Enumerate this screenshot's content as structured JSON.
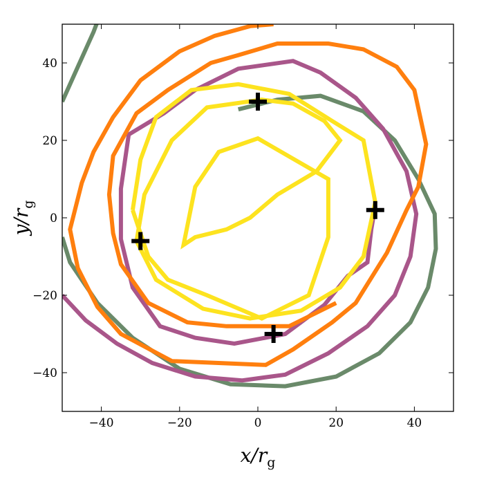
{
  "chart_data": {
    "type": "line",
    "title": "",
    "xlabel": {
      "main": "x/r",
      "sub": "g"
    },
    "ylabel": {
      "main": "y/r",
      "sub": "g"
    },
    "xlim": [
      -50,
      50
    ],
    "ylim": [
      -50,
      50
    ],
    "xticks": [
      -40,
      -20,
      0,
      20,
      40
    ],
    "yticks": [
      -40,
      -20,
      0,
      20,
      40
    ],
    "xtick_labels": [
      "−40",
      "−20",
      "0",
      "20",
      "40"
    ],
    "ytick_labels": [
      "−40",
      "−20",
      "0",
      "20",
      "40"
    ],
    "grid": false,
    "legend": "none",
    "series": [
      {
        "color": "#6a8a6a",
        "points": [
          [
            -50,
            -5
          ],
          [
            -48,
            -11.5
          ],
          [
            -41,
            -22
          ],
          [
            -32,
            -31
          ],
          [
            -20,
            -39
          ],
          [
            -7,
            -43
          ],
          [
            7,
            -43.5
          ],
          [
            20,
            -41
          ],
          [
            31,
            -35
          ],
          [
            39,
            -27
          ],
          [
            43.5,
            -18
          ],
          [
            45.5,
            -8
          ],
          [
            45.2,
            1
          ],
          [
            41,
            10
          ],
          [
            35,
            20
          ],
          [
            27,
            27.5
          ],
          [
            16,
            31.5
          ],
          [
            5,
            30.5
          ],
          [
            -5,
            28
          ]
        ]
      },
      {
        "color": "#6a8a6a",
        "points": [
          [
            -50,
            30
          ],
          [
            -46,
            39
          ],
          [
            -42,
            48
          ],
          [
            -40.5,
            52
          ]
        ]
      },
      {
        "color": "#a9568a",
        "points": [
          [
            -50,
            -20
          ],
          [
            -44,
            -26.5
          ],
          [
            -36,
            -32.5
          ],
          [
            -27,
            -37.5
          ],
          [
            -16,
            -41
          ],
          [
            -4,
            -42
          ],
          [
            7,
            -40.5
          ],
          [
            18,
            -35
          ],
          [
            28,
            -28
          ],
          [
            35,
            -20
          ],
          [
            39,
            -10
          ],
          [
            40.5,
            1
          ],
          [
            38,
            12
          ],
          [
            32,
            23
          ],
          [
            25,
            31
          ],
          [
            16,
            37.5
          ],
          [
            9,
            40.5
          ],
          [
            -5,
            38.5
          ],
          [
            -16,
            33
          ],
          [
            -24,
            27
          ],
          [
            -33,
            21.5
          ],
          [
            -35,
            7.5
          ],
          [
            -35,
            -5.5
          ],
          [
            -32,
            -18
          ],
          [
            -25,
            -28
          ],
          [
            -16,
            -31
          ],
          [
            -6,
            -32.5
          ],
          [
            7,
            -30
          ],
          [
            17,
            -22.5
          ],
          [
            23,
            -15
          ],
          [
            28,
            -11.5
          ],
          [
            29,
            -3
          ],
          [
            30,
            3
          ]
        ]
      },
      {
        "color": "#ff7f0e",
        "points": [
          [
            4,
            50
          ],
          [
            -2,
            49.5
          ],
          [
            -11,
            47
          ],
          [
            -20,
            43
          ],
          [
            -30,
            35.5
          ],
          [
            -37,
            26
          ],
          [
            -42,
            17
          ],
          [
            -45,
            9
          ],
          [
            -48,
            -3
          ],
          [
            -46,
            -13
          ],
          [
            -41,
            -23
          ],
          [
            -35,
            -30
          ],
          [
            -22,
            -37
          ],
          [
            -10,
            -37.5
          ],
          [
            2,
            -38
          ],
          [
            9,
            -34
          ],
          [
            19,
            -27
          ],
          [
            25,
            -22
          ],
          [
            33,
            -9
          ],
          [
            38,
            2
          ],
          [
            41,
            8
          ],
          [
            43,
            19
          ],
          [
            40,
            33
          ],
          [
            35.5,
            39
          ],
          [
            27,
            43.5
          ],
          [
            18,
            45
          ],
          [
            5,
            45
          ],
          [
            -5,
            42
          ],
          [
            -12,
            40
          ],
          [
            -23,
            33
          ],
          [
            -31,
            27
          ],
          [
            -37,
            16
          ],
          [
            -38,
            6
          ],
          [
            -37,
            -4
          ],
          [
            -35,
            -12
          ],
          [
            -28,
            -22
          ],
          [
            -18,
            -27
          ],
          [
            -8,
            -28
          ],
          [
            8,
            -28
          ],
          [
            20,
            -22
          ]
        ]
      },
      {
        "color": "#fde31f",
        "points": [
          [
            -32,
            2
          ],
          [
            -30,
            15
          ],
          [
            -26,
            26
          ],
          [
            -17,
            33
          ],
          [
            -5,
            34.5
          ],
          [
            8,
            32
          ],
          [
            19,
            25
          ],
          [
            27,
            20
          ],
          [
            30,
            4
          ],
          [
            27,
            -10
          ],
          [
            21,
            -18
          ],
          [
            11,
            -24
          ],
          [
            -2,
            -26
          ],
          [
            -14,
            -23.5
          ],
          [
            -26,
            -16
          ],
          [
            -31,
            -6
          ],
          [
            -29,
            6
          ],
          [
            -22,
            20
          ],
          [
            -13,
            28.5
          ],
          [
            1,
            30.5
          ],
          [
            9,
            29.5
          ],
          [
            17,
            25
          ],
          [
            21,
            20
          ],
          [
            15,
            12
          ],
          [
            5,
            6
          ],
          [
            -2,
            0
          ],
          [
            -8,
            -3
          ],
          [
            -16,
            -5
          ],
          [
            -19,
            -7
          ],
          [
            -16,
            8
          ],
          [
            -10,
            17
          ],
          [
            0,
            20.5
          ],
          [
            18,
            10
          ],
          [
            18,
            -5
          ],
          [
            13,
            -20
          ],
          [
            1,
            -26
          ],
          [
            -13,
            -20
          ],
          [
            -23,
            -16
          ],
          [
            -28,
            -10
          ],
          [
            -32,
            2
          ]
        ]
      }
    ],
    "markers": [
      {
        "shape": "plus",
        "x": 0,
        "y": 30
      },
      {
        "shape": "plus",
        "x": 30,
        "y": 2
      },
      {
        "shape": "plus",
        "x": -30,
        "y": -6
      },
      {
        "shape": "plus",
        "x": 4,
        "y": -30
      }
    ]
  }
}
